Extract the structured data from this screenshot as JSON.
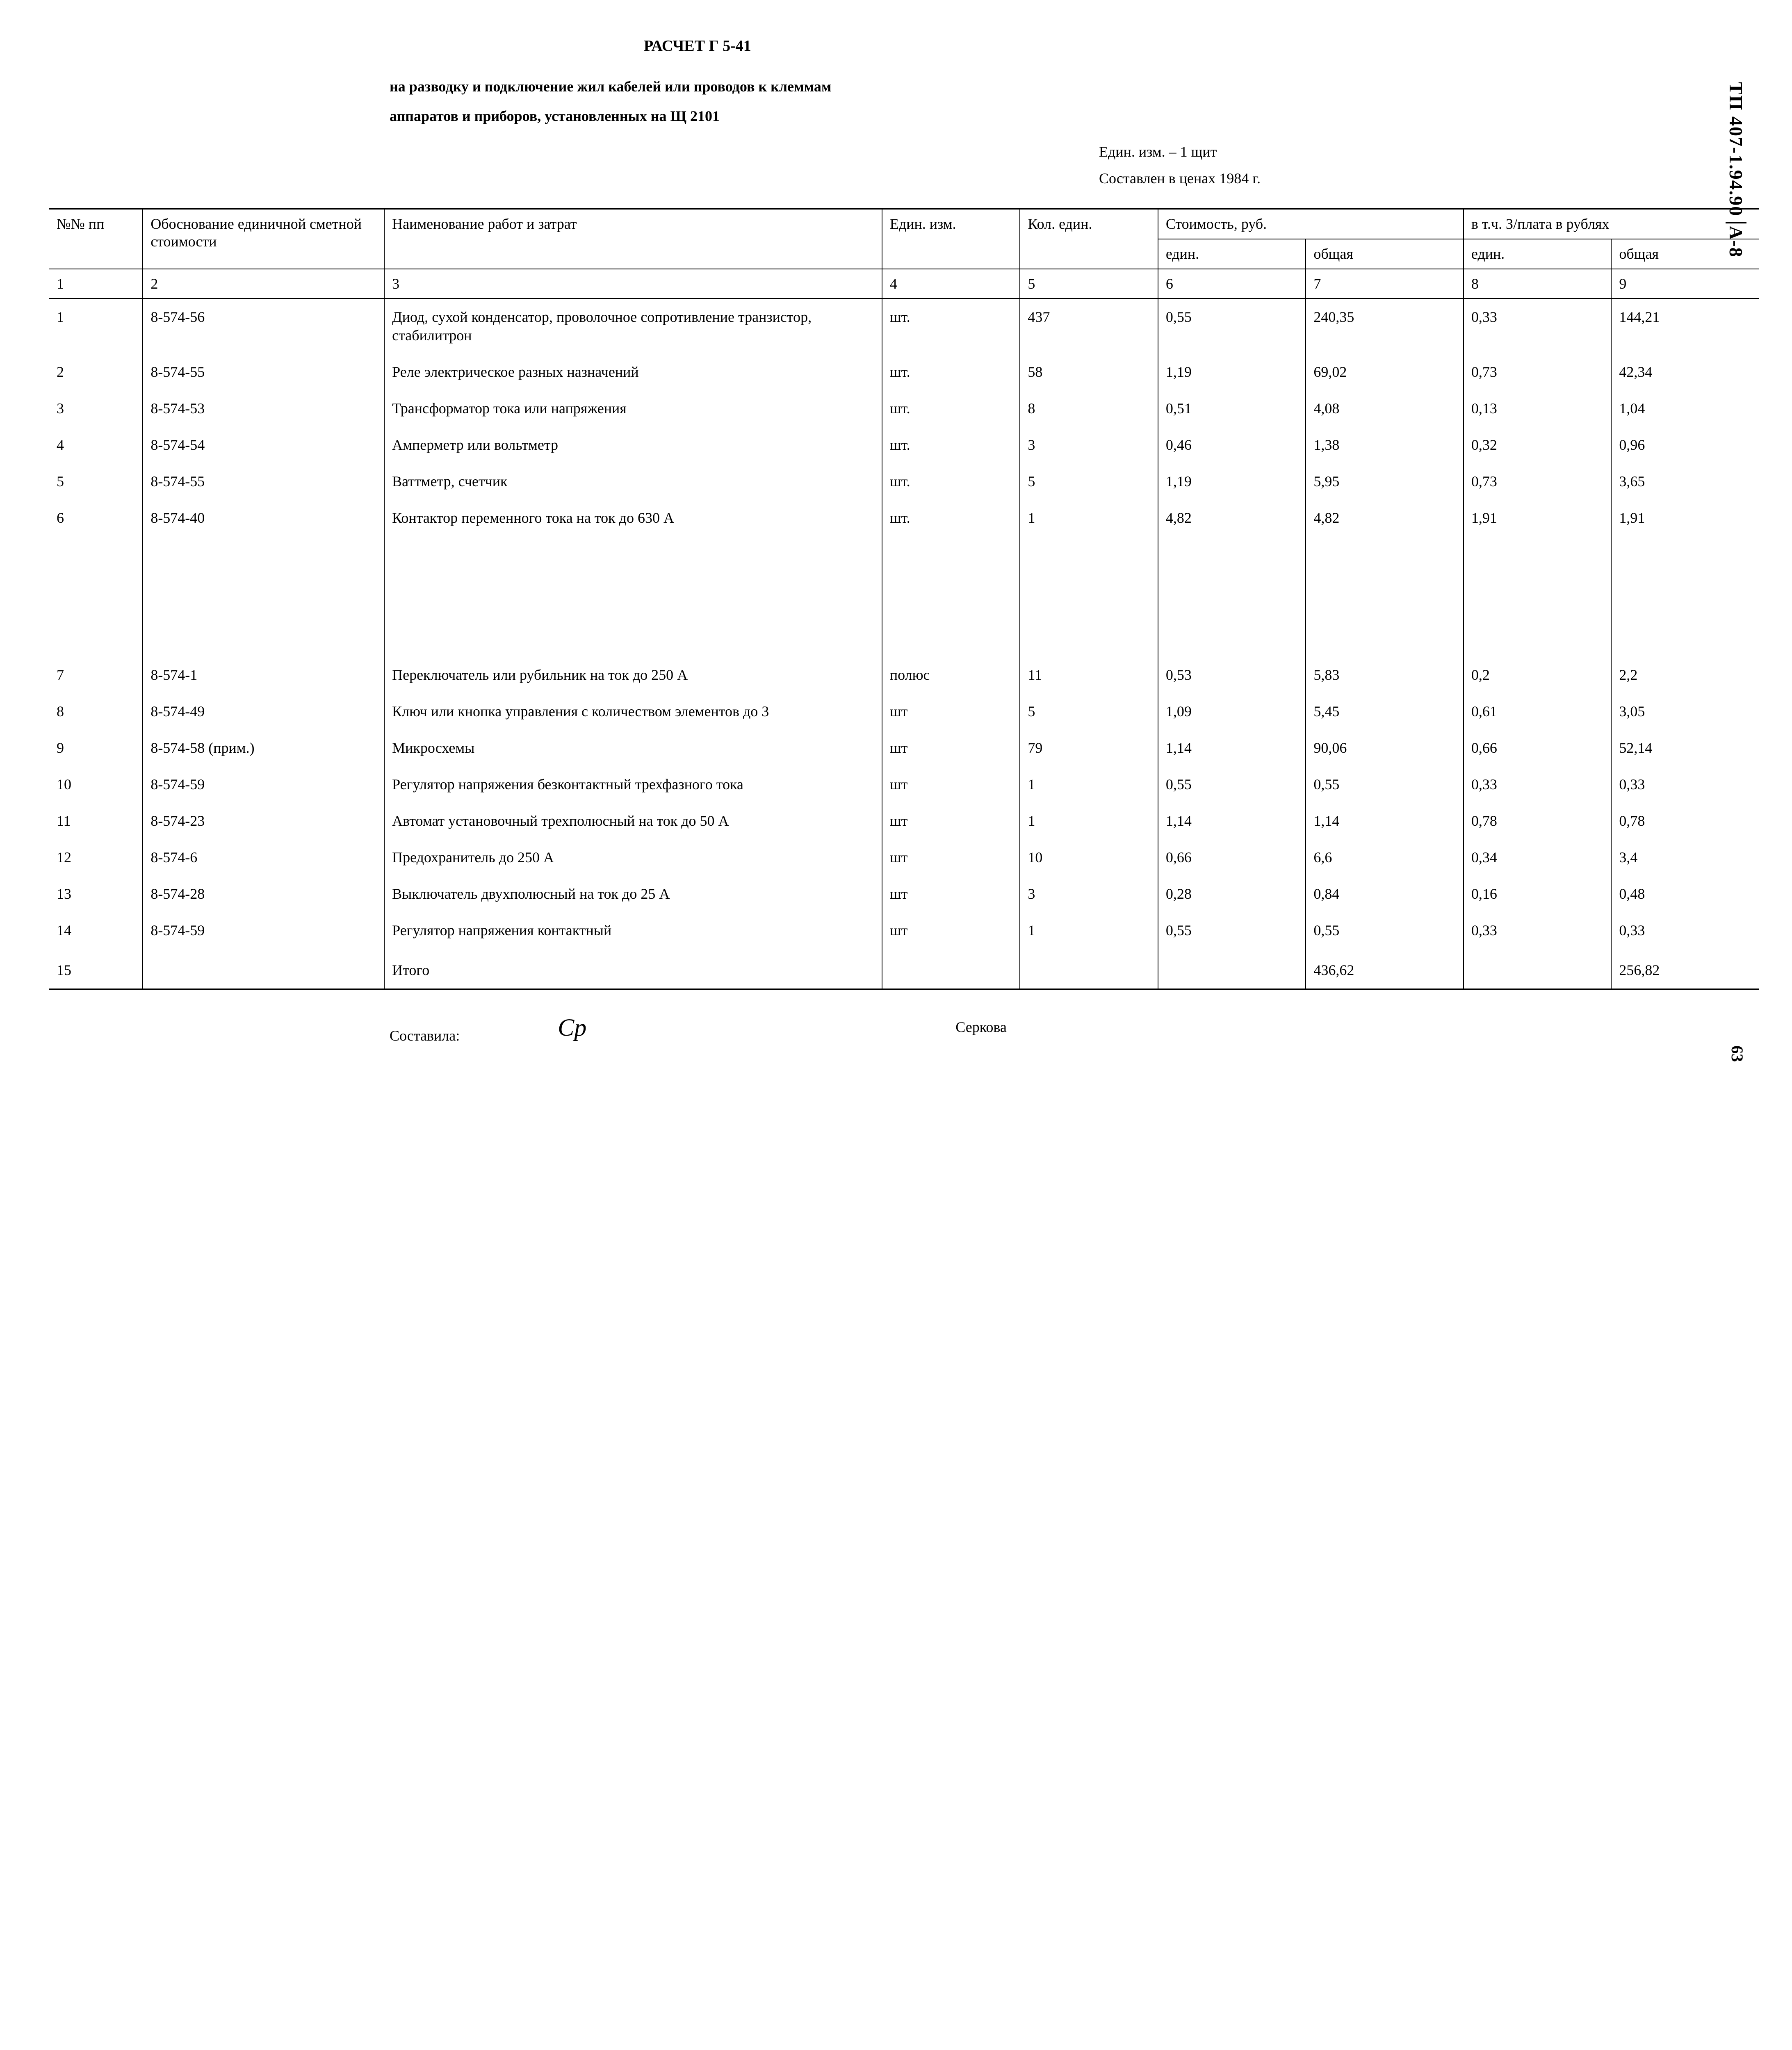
{
  "side_code": "ТП 407-1.94.90",
  "side_code_suffix": "А-8",
  "mid_page_num": "63",
  "header": {
    "title": "РАСЧЕТ Г 5-41",
    "desc1": "на разводку и подключение жил кабелей или проводов к клеммам",
    "desc2": "аппаратов и приборов, установленных на Щ 2101",
    "unit_line": "Един. изм. – 1 щит",
    "price_line": "Составлен в ценах 1984 г."
  },
  "table": {
    "columns": {
      "c1": "№№\nпп",
      "c2": "Обоснование единичной сметной стоимости",
      "c3": "Наименование работ и затрат",
      "c4": "Един. изм.",
      "c5": "Кол. един.",
      "grp_cost": "Стоимость, руб.",
      "grp_zp": "в т.ч. З/плата в рублях",
      "sub_edin": "един.",
      "sub_obsh": "общая"
    },
    "colnums": [
      "1",
      "2",
      "3",
      "4",
      "5",
      "6",
      "7",
      "8",
      "9"
    ],
    "rows": [
      {
        "n": "1",
        "code": "8-574-56",
        "name": "Диод, сухой конденсатор, проволочное сопротивление транзистор, стабилитрон",
        "unit": "шт.",
        "qty": "437",
        "c6": "0,55",
        "c7": "240,35",
        "c8": "0,33",
        "c9": "144,21"
      },
      {
        "n": "2",
        "code": "8-574-55",
        "name": "Реле электрическое разных назначений",
        "unit": "шт.",
        "qty": "58",
        "c6": "1,19",
        "c7": "69,02",
        "c8": "0,73",
        "c9": "42,34"
      },
      {
        "n": "3",
        "code": "8-574-53",
        "name": "Трансформатор тока или напряжения",
        "unit": "шт.",
        "qty": "8",
        "c6": "0,51",
        "c7": "4,08",
        "c8": "0,13",
        "c9": "1,04"
      },
      {
        "n": "4",
        "code": "8-574-54",
        "name": "Амперметр или вольтметр",
        "unit": "шт.",
        "qty": "3",
        "c6": "0,46",
        "c7": "1,38",
        "c8": "0,32",
        "c9": "0,96"
      },
      {
        "n": "5",
        "code": "8-574-55",
        "name": "Ваттметр, счетчик",
        "unit": "шт.",
        "qty": "5",
        "c6": "1,19",
        "c7": "5,95",
        "c8": "0,73",
        "c9": "3,65"
      },
      {
        "n": "6",
        "code": "8-574-40",
        "name": "Контактор переменного тока на ток до 630 А",
        "unit": "шт.",
        "qty": "1",
        "c6": "4,82",
        "c7": "4,82",
        "c8": "1,91",
        "c9": "1,91"
      },
      {
        "n": "7",
        "code": "8-574-1",
        "name": "Переключатель или рубильник на ток до 250 А",
        "unit": "полюс",
        "qty": "11",
        "c6": "0,53",
        "c7": "5,83",
        "c8": "0,2",
        "c9": "2,2"
      },
      {
        "n": "8",
        "code": "8-574-49",
        "name": "Ключ или кнопка управления с количеством элементов до 3",
        "unit": "шт",
        "qty": "5",
        "c6": "1,09",
        "c7": "5,45",
        "c8": "0,61",
        "c9": "3,05"
      },
      {
        "n": "9",
        "code": "8-574-58 (прим.)",
        "name": "Микросхемы",
        "unit": "шт",
        "qty": "79",
        "c6": "1,14",
        "c7": "90,06",
        "c8": "0,66",
        "c9": "52,14"
      },
      {
        "n": "10",
        "code": "8-574-59",
        "name": "Регулятор напряжения безконтактный трехфазного тока",
        "unit": "шт",
        "qty": "1",
        "c6": "0,55",
        "c7": "0,55",
        "c8": "0,33",
        "c9": "0,33"
      },
      {
        "n": "11",
        "code": "8-574-23",
        "name": "Автомат установочный трехполюсный на ток до 50 А",
        "unit": "шт",
        "qty": "1",
        "c6": "1,14",
        "c7": "1,14",
        "c8": "0,78",
        "c9": "0,78"
      },
      {
        "n": "12",
        "code": "8-574-6",
        "name": "Предохранитель до 250 А",
        "unit": "шт",
        "qty": "10",
        "c6": "0,66",
        "c7": "6,6",
        "c8": "0,34",
        "c9": "3,4"
      },
      {
        "n": "13",
        "code": "8-574-28",
        "name": "Выключатель двухполюсный на ток до 25 А",
        "unit": "шт",
        "qty": "3",
        "c6": "0,28",
        "c7": "0,84",
        "c8": "0,16",
        "c9": "0,48"
      },
      {
        "n": "14",
        "code": "8-574-59",
        "name": "Регулятор напряжения контактный",
        "unit": "шт",
        "qty": "1",
        "c6": "0,55",
        "c7": "0,55",
        "c8": "0,33",
        "c9": "0,33"
      },
      {
        "n": "15",
        "code": "",
        "name": "Итого",
        "unit": "",
        "qty": "",
        "c6": "",
        "c7": "436,62",
        "c8": "",
        "c9": "256,82"
      }
    ]
  },
  "footer": {
    "compiled_label": "Составила:",
    "name": "Серкова",
    "sig": "Ср"
  }
}
